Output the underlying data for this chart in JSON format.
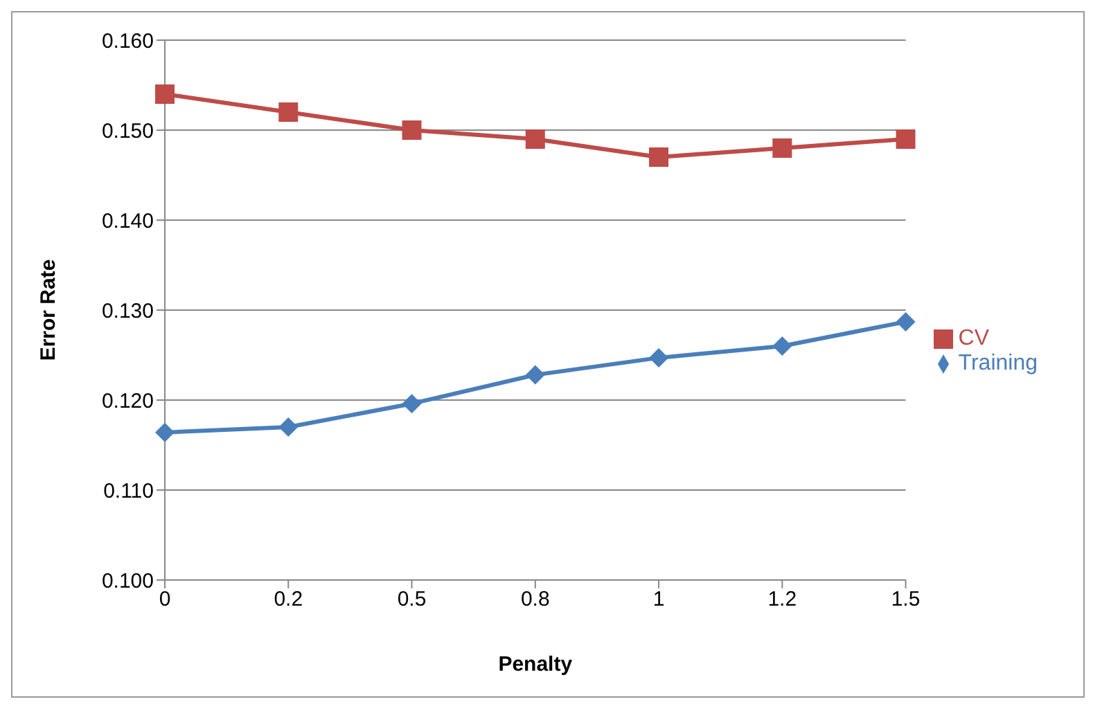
{
  "chart_data": {
    "type": "line",
    "xlabel": "Penalty",
    "ylabel": "Error Rate",
    "categories": [
      "0",
      "0.2",
      "0.5",
      "0.8",
      "1",
      "1.2",
      "1.5"
    ],
    "series": [
      {
        "name": "Training",
        "color": "#4a7ebb",
        "marker": "diamond",
        "values": [
          0.1164,
          0.117,
          0.1196,
          0.1228,
          0.1247,
          0.126,
          0.1287
        ]
      },
      {
        "name": "CV",
        "color": "#be4b48",
        "marker": "square",
        "values": [
          0.154,
          0.152,
          0.15,
          0.149,
          0.147,
          0.148,
          0.149
        ]
      }
    ],
    "ylim": [
      0.1,
      0.16
    ],
    "yticks": [
      {
        "value": 0.1,
        "label": "0.100"
      },
      {
        "value": 0.11,
        "label": "0.110"
      },
      {
        "value": 0.12,
        "label": "0.120"
      },
      {
        "value": 0.13,
        "label": "0.130"
      },
      {
        "value": 0.14,
        "label": "0.140"
      },
      {
        "value": 0.15,
        "label": "0.150"
      },
      {
        "value": 0.16,
        "label": "0.160"
      }
    ],
    "grid": "y",
    "legend": "right",
    "line_style": "solid"
  }
}
